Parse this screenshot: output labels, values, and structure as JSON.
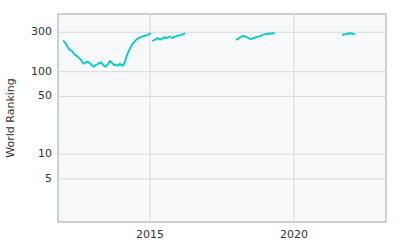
{
  "chart_data": {
    "type": "line",
    "ylabel": "World Ranking",
    "color": "#00c8c8",
    "log": "y",
    "grid": true,
    "xlim": [
      2011.8,
      2023.2
    ],
    "xticks": [
      2015,
      2020
    ],
    "ylim": [
      1.5,
      500
    ],
    "yticks": [
      5,
      10,
      50,
      100,
      300
    ],
    "x": [
      2012.0,
      2012.05,
      2012.1,
      2012.15,
      2012.2,
      2012.3,
      2012.35,
      2012.4,
      2012.45,
      2012.5,
      2012.55,
      2012.6,
      2012.65,
      2012.7,
      2012.75,
      2012.8,
      2012.9,
      2012.95,
      2013.0,
      2013.05,
      2013.1,
      2013.15,
      2013.2,
      2013.3,
      2013.35,
      2013.4,
      2013.45,
      2013.5,
      2013.55,
      2013.6,
      2013.65,
      2013.7,
      2013.75,
      2013.8,
      2013.85,
      2013.9,
      2013.95,
      2014.0,
      2014.05,
      2014.1,
      2014.15,
      2014.2,
      2014.25,
      2014.3,
      2014.35,
      2014.4,
      2014.45,
      2014.5,
      2014.55,
      2014.6,
      2014.65,
      2014.7,
      2014.75,
      2014.8,
      2014.9,
      2014.95,
      2015.0,
      null,
      2015.1,
      2015.15,
      2015.2,
      2015.25,
      2015.3,
      2015.35,
      2015.4,
      2015.45,
      2015.5,
      2015.55,
      2015.6,
      2015.65,
      2015.7,
      null,
      2015.75,
      2015.8,
      2015.85,
      2015.9,
      2015.95,
      2016.0,
      2016.05,
      2016.1,
      2016.15,
      2016.2,
      null,
      2018.0,
      2018.05,
      2018.1,
      2018.15,
      2018.2,
      2018.25,
      2018.3,
      2018.35,
      2018.4,
      2018.45,
      2018.5,
      2018.55,
      2018.6,
      2018.65,
      2018.7,
      2018.75,
      2018.8,
      2018.85,
      2018.9,
      2018.95,
      2019.0,
      2019.1,
      2019.2,
      2019.3,
      null,
      2021.7,
      2021.75,
      2021.8,
      2021.85,
      2021.9,
      2021.95,
      2022.0,
      2022.05,
      2022.1
    ],
    "values": [
      235,
      225,
      210,
      195,
      185,
      175,
      165,
      160,
      155,
      150,
      145,
      138,
      130,
      125,
      128,
      132,
      128,
      122,
      118,
      115,
      120,
      122,
      125,
      130,
      122,
      118,
      115,
      120,
      125,
      135,
      130,
      125,
      120,
      122,
      118,
      120,
      125,
      120,
      118,
      125,
      140,
      160,
      175,
      190,
      205,
      220,
      230,
      240,
      248,
      255,
      260,
      265,
      268,
      272,
      278,
      282,
      290,
      null,
      238,
      242,
      248,
      255,
      250,
      245,
      248,
      255,
      262,
      255,
      258,
      262,
      268,
      null,
      255,
      260,
      265,
      268,
      272,
      275,
      278,
      282,
      285,
      290,
      null,
      245,
      248,
      255,
      262,
      268,
      272,
      268,
      262,
      258,
      252,
      248,
      252,
      255,
      260,
      262,
      265,
      268,
      272,
      278,
      282,
      285,
      288,
      290,
      292,
      null,
      280,
      282,
      285,
      288,
      290,
      292,
      290,
      288,
      285
    ]
  }
}
